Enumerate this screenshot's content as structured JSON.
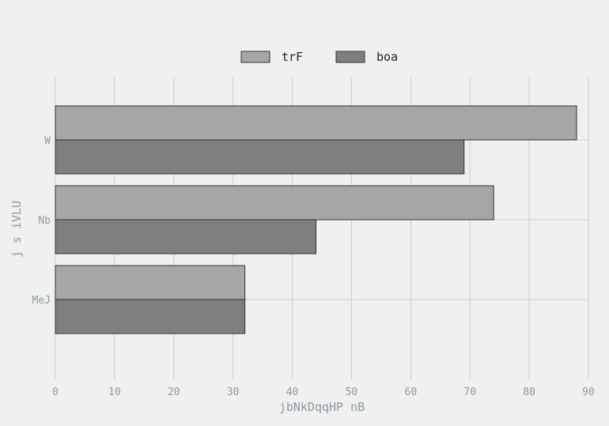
{
  "chart_data": {
    "type": "bar",
    "orientation": "horizontal",
    "categories": [
      "W",
      "Nb",
      "MeJ"
    ],
    "series": [
      {
        "name": "trF",
        "values": [
          88,
          74,
          32
        ],
        "color": "#a6a6a6"
      },
      {
        "name": "boa",
        "values": [
          69,
          44,
          32
        ],
        "color": "#7f7f7f"
      }
    ],
    "xlabel": "jbNkDqqHP nB",
    "ylabel": "j s iVLU",
    "xlim": [
      0,
      90
    ],
    "xticks": [
      "0",
      "10",
      "20",
      "30",
      "40",
      "50",
      "60",
      "70",
      "80",
      "90"
    ],
    "grid": true,
    "legend": "top-center"
  },
  "colors": {
    "background": "#f0f0f0",
    "grid": "#cccccc",
    "bar_edge": "#333333",
    "tick_text": "#8a9aa0"
  }
}
